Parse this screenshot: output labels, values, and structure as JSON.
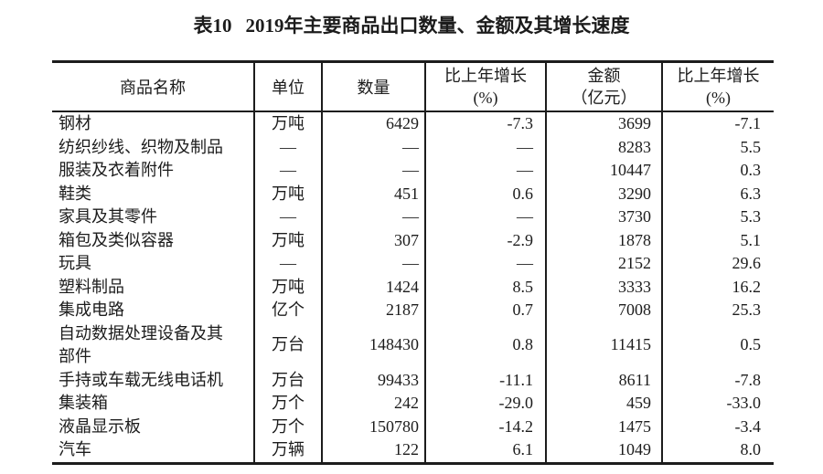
{
  "page": {
    "table_label": "表10",
    "title": "2019年主要商品出口数量、金额及其增长速度"
  },
  "table": {
    "headers": {
      "name": "商品名称",
      "unit": "单位",
      "quantity": "数量",
      "quantity_growth_line1": "比上年增长",
      "quantity_growth_line2": "(%)",
      "amount_line1": "金额",
      "amount_line2": "（亿元）",
      "amount_growth_line1": "比上年增长",
      "amount_growth_line2": "(%)"
    },
    "rows": [
      {
        "name": "钢材",
        "unit": "万吨",
        "quantity": "6429",
        "quantity_growth": "-7.3",
        "amount": "3699",
        "amount_growth": "-7.1"
      },
      {
        "name": "纺织纱线、织物及制品",
        "unit": "—",
        "quantity": "—",
        "quantity_growth": "—",
        "amount": "8283",
        "amount_growth": "5.5"
      },
      {
        "name": "服装及衣着附件",
        "unit": "—",
        "quantity": "—",
        "quantity_growth": "—",
        "amount": "10447",
        "amount_growth": "0.3"
      },
      {
        "name": "鞋类",
        "unit": "万吨",
        "quantity": "451",
        "quantity_growth": "0.6",
        "amount": "3290",
        "amount_growth": "6.3"
      },
      {
        "name": "家具及其零件",
        "unit": "—",
        "quantity": "—",
        "quantity_growth": "—",
        "amount": "3730",
        "amount_growth": "5.3"
      },
      {
        "name": "箱包及类似容器",
        "unit": "万吨",
        "quantity": "307",
        "quantity_growth": "-2.9",
        "amount": "1878",
        "amount_growth": "5.1"
      },
      {
        "name": "玩具",
        "unit": "—",
        "quantity": "—",
        "quantity_growth": "—",
        "amount": "2152",
        "amount_growth": "29.6"
      },
      {
        "name": "塑料制品",
        "unit": "万吨",
        "quantity": "1424",
        "quantity_growth": "8.5",
        "amount": "3333",
        "amount_growth": "16.2"
      },
      {
        "name": "集成电路",
        "unit": "亿个",
        "quantity": "2187",
        "quantity_growth": "0.7",
        "amount": "7008",
        "amount_growth": "25.3"
      },
      {
        "name": "自动数据处理设备及其\n部件",
        "unit": "万台",
        "quantity": "148430",
        "quantity_growth": "0.8",
        "amount": "11415",
        "amount_growth": "0.5"
      },
      {
        "name": "手持或车载无线电话机",
        "unit": "万台",
        "quantity": "99433",
        "quantity_growth": "-11.1",
        "amount": "8611",
        "amount_growth": "-7.8"
      },
      {
        "name": "集装箱",
        "unit": "万个",
        "quantity": "242",
        "quantity_growth": "-29.0",
        "amount": "459",
        "amount_growth": "-33.0"
      },
      {
        "name": "液晶显示板",
        "unit": "万个",
        "quantity": "150780",
        "quantity_growth": "-14.2",
        "amount": "1475",
        "amount_growth": "-3.4"
      },
      {
        "name": "汽车",
        "unit": "万辆",
        "quantity": "122",
        "quantity_growth": "6.1",
        "amount": "1049",
        "amount_growth": "8.0"
      }
    ]
  },
  "colors": {
    "text": "#1c1c1c",
    "border": "#1c1c1c",
    "background": "#ffffff"
  }
}
